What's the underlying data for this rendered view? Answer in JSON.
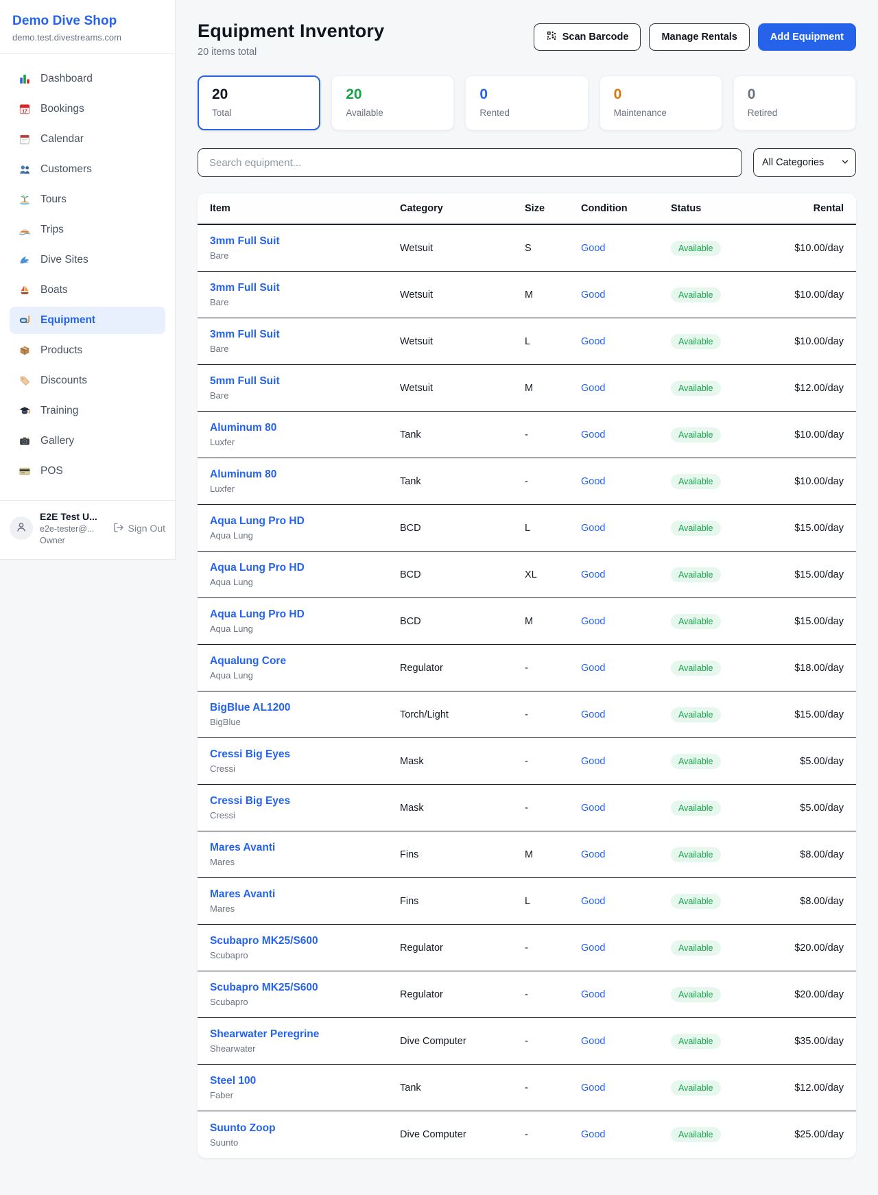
{
  "sidebar": {
    "brand": "Demo Dive Shop",
    "domain": "demo.test.divestreams.com",
    "items": [
      {
        "icon": "bar-chart-icon",
        "label": "Dashboard",
        "active": false
      },
      {
        "icon": "bookings-calendar-icon",
        "label": "Bookings",
        "active": false
      },
      {
        "icon": "calendar-icon",
        "label": "Calendar",
        "active": false
      },
      {
        "icon": "customers-icon",
        "label": "Customers",
        "active": false
      },
      {
        "icon": "island-icon",
        "label": "Tours",
        "active": false
      },
      {
        "icon": "speedboat-icon",
        "label": "Trips",
        "active": false
      },
      {
        "icon": "wave-icon",
        "label": "Dive Sites",
        "active": false
      },
      {
        "icon": "sailboat-icon",
        "label": "Boats",
        "active": false
      },
      {
        "icon": "dive-mask-icon",
        "label": "Equipment",
        "active": true
      },
      {
        "icon": "package-icon",
        "label": "Products",
        "active": false
      },
      {
        "icon": "tag-icon",
        "label": "Discounts",
        "active": false
      },
      {
        "icon": "graduation-cap-icon",
        "label": "Training",
        "active": false
      },
      {
        "icon": "camera-icon",
        "label": "Gallery",
        "active": false
      },
      {
        "icon": "credit-card-icon",
        "label": "POS",
        "active": false
      }
    ],
    "user": {
      "name": "E2E Test U...",
      "email": "e2e-tester@...",
      "role": "Owner",
      "sign_out_label": "Sign Out"
    }
  },
  "header": {
    "title": "Equipment Inventory",
    "subtitle": "20 items total",
    "scan_barcode_label": "Scan Barcode",
    "manage_rentals_label": "Manage Rentals",
    "add_equipment_label": "Add Equipment"
  },
  "stats": [
    {
      "value": "20",
      "label": "Total",
      "color": "#10151e",
      "selected": true
    },
    {
      "value": "20",
      "label": "Available",
      "color": "#16a34a",
      "selected": false
    },
    {
      "value": "0",
      "label": "Rented",
      "color": "#2563eb",
      "selected": false
    },
    {
      "value": "0",
      "label": "Maintenance",
      "color": "#d97706",
      "selected": false
    },
    {
      "value": "0",
      "label": "Retired",
      "color": "#6b7280",
      "selected": false
    }
  ],
  "filters": {
    "search_placeholder": "Search equipment...",
    "category_selected": "All Categories"
  },
  "table": {
    "columns": [
      "Item",
      "Category",
      "Size",
      "Condition",
      "Status",
      "Rental"
    ],
    "rows": [
      {
        "name": "3mm Full Suit",
        "brand": "Bare",
        "category": "Wetsuit",
        "size": "S",
        "condition": "Good",
        "status": "Available",
        "rental": "$10.00/day"
      },
      {
        "name": "3mm Full Suit",
        "brand": "Bare",
        "category": "Wetsuit",
        "size": "M",
        "condition": "Good",
        "status": "Available",
        "rental": "$10.00/day"
      },
      {
        "name": "3mm Full Suit",
        "brand": "Bare",
        "category": "Wetsuit",
        "size": "L",
        "condition": "Good",
        "status": "Available",
        "rental": "$10.00/day"
      },
      {
        "name": "5mm Full Suit",
        "brand": "Bare",
        "category": "Wetsuit",
        "size": "M",
        "condition": "Good",
        "status": "Available",
        "rental": "$12.00/day"
      },
      {
        "name": "Aluminum 80",
        "brand": "Luxfer",
        "category": "Tank",
        "size": "-",
        "condition": "Good",
        "status": "Available",
        "rental": "$10.00/day"
      },
      {
        "name": "Aluminum 80",
        "brand": "Luxfer",
        "category": "Tank",
        "size": "-",
        "condition": "Good",
        "status": "Available",
        "rental": "$10.00/day"
      },
      {
        "name": "Aqua Lung Pro HD",
        "brand": "Aqua Lung",
        "category": "BCD",
        "size": "L",
        "condition": "Good",
        "status": "Available",
        "rental": "$15.00/day"
      },
      {
        "name": "Aqua Lung Pro HD",
        "brand": "Aqua Lung",
        "category": "BCD",
        "size": "XL",
        "condition": "Good",
        "status": "Available",
        "rental": "$15.00/day"
      },
      {
        "name": "Aqua Lung Pro HD",
        "brand": "Aqua Lung",
        "category": "BCD",
        "size": "M",
        "condition": "Good",
        "status": "Available",
        "rental": "$15.00/day"
      },
      {
        "name": "Aqualung Core",
        "brand": "Aqua Lung",
        "category": "Regulator",
        "size": "-",
        "condition": "Good",
        "status": "Available",
        "rental": "$18.00/day"
      },
      {
        "name": "BigBlue AL1200",
        "brand": "BigBlue",
        "category": "Torch/Light",
        "size": "-",
        "condition": "Good",
        "status": "Available",
        "rental": "$15.00/day"
      },
      {
        "name": "Cressi Big Eyes",
        "brand": "Cressi",
        "category": "Mask",
        "size": "-",
        "condition": "Good",
        "status": "Available",
        "rental": "$5.00/day"
      },
      {
        "name": "Cressi Big Eyes",
        "brand": "Cressi",
        "category": "Mask",
        "size": "-",
        "condition": "Good",
        "status": "Available",
        "rental": "$5.00/day"
      },
      {
        "name": "Mares Avanti",
        "brand": "Mares",
        "category": "Fins",
        "size": "M",
        "condition": "Good",
        "status": "Available",
        "rental": "$8.00/day"
      },
      {
        "name": "Mares Avanti",
        "brand": "Mares",
        "category": "Fins",
        "size": "L",
        "condition": "Good",
        "status": "Available",
        "rental": "$8.00/day"
      },
      {
        "name": "Scubapro MK25/S600",
        "brand": "Scubapro",
        "category": "Regulator",
        "size": "-",
        "condition": "Good",
        "status": "Available",
        "rental": "$20.00/day"
      },
      {
        "name": "Scubapro MK25/S600",
        "brand": "Scubapro",
        "category": "Regulator",
        "size": "-",
        "condition": "Good",
        "status": "Available",
        "rental": "$20.00/day"
      },
      {
        "name": "Shearwater Peregrine",
        "brand": "Shearwater",
        "category": "Dive Computer",
        "size": "-",
        "condition": "Good",
        "status": "Available",
        "rental": "$35.00/day"
      },
      {
        "name": "Steel 100",
        "brand": "Faber",
        "category": "Tank",
        "size": "-",
        "condition": "Good",
        "status": "Available",
        "rental": "$12.00/day"
      },
      {
        "name": "Suunto Zoop",
        "brand": "Suunto",
        "category": "Dive Computer",
        "size": "-",
        "condition": "Good",
        "status": "Available",
        "rental": "$25.00/day"
      }
    ]
  },
  "colors": {
    "accent_blue": "#2563eb",
    "available_green": "#16a34a",
    "maintenance_orange": "#d97706",
    "retired_gray": "#6b7280",
    "badge_bg": "#e6f7ed",
    "active_nav_bg": "#e9f0fd",
    "page_bg": "#f6f7f9",
    "dark_border": "#1b212c"
  }
}
